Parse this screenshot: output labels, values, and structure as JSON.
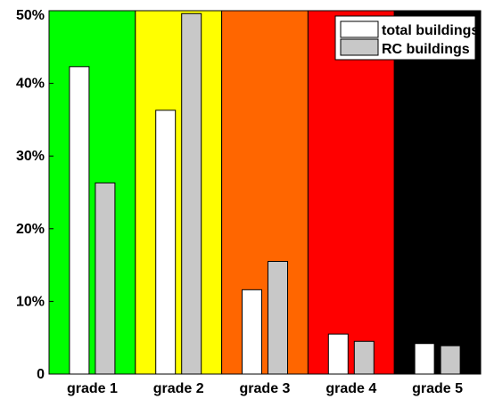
{
  "chart_data": {
    "type": "bar",
    "categories": [
      "grade 1",
      "grade 2",
      "grade 3",
      "grade 4",
      "grade 5"
    ],
    "background_colors": [
      "#00ff00",
      "#ffff00",
      "#ff6600",
      "#ff0000",
      "#000000"
    ],
    "series": [
      {
        "name": "total buildings",
        "color": "#ffffff",
        "values": [
          42.3,
          36.3,
          11.6,
          5.5,
          4.2
        ]
      },
      {
        "name": "RC buildings",
        "color": "#c8c8c8",
        "values": [
          26.3,
          49.6,
          15.5,
          4.5,
          3.9
        ]
      }
    ],
    "yticks": [
      0,
      10,
      20,
      30,
      40,
      50
    ],
    "ytick_labels": [
      "0",
      "10%",
      "20%",
      "30%",
      "40%",
      "50%"
    ],
    "ylim": [
      0,
      50
    ],
    "grid": false,
    "legend_position": "top-right"
  }
}
